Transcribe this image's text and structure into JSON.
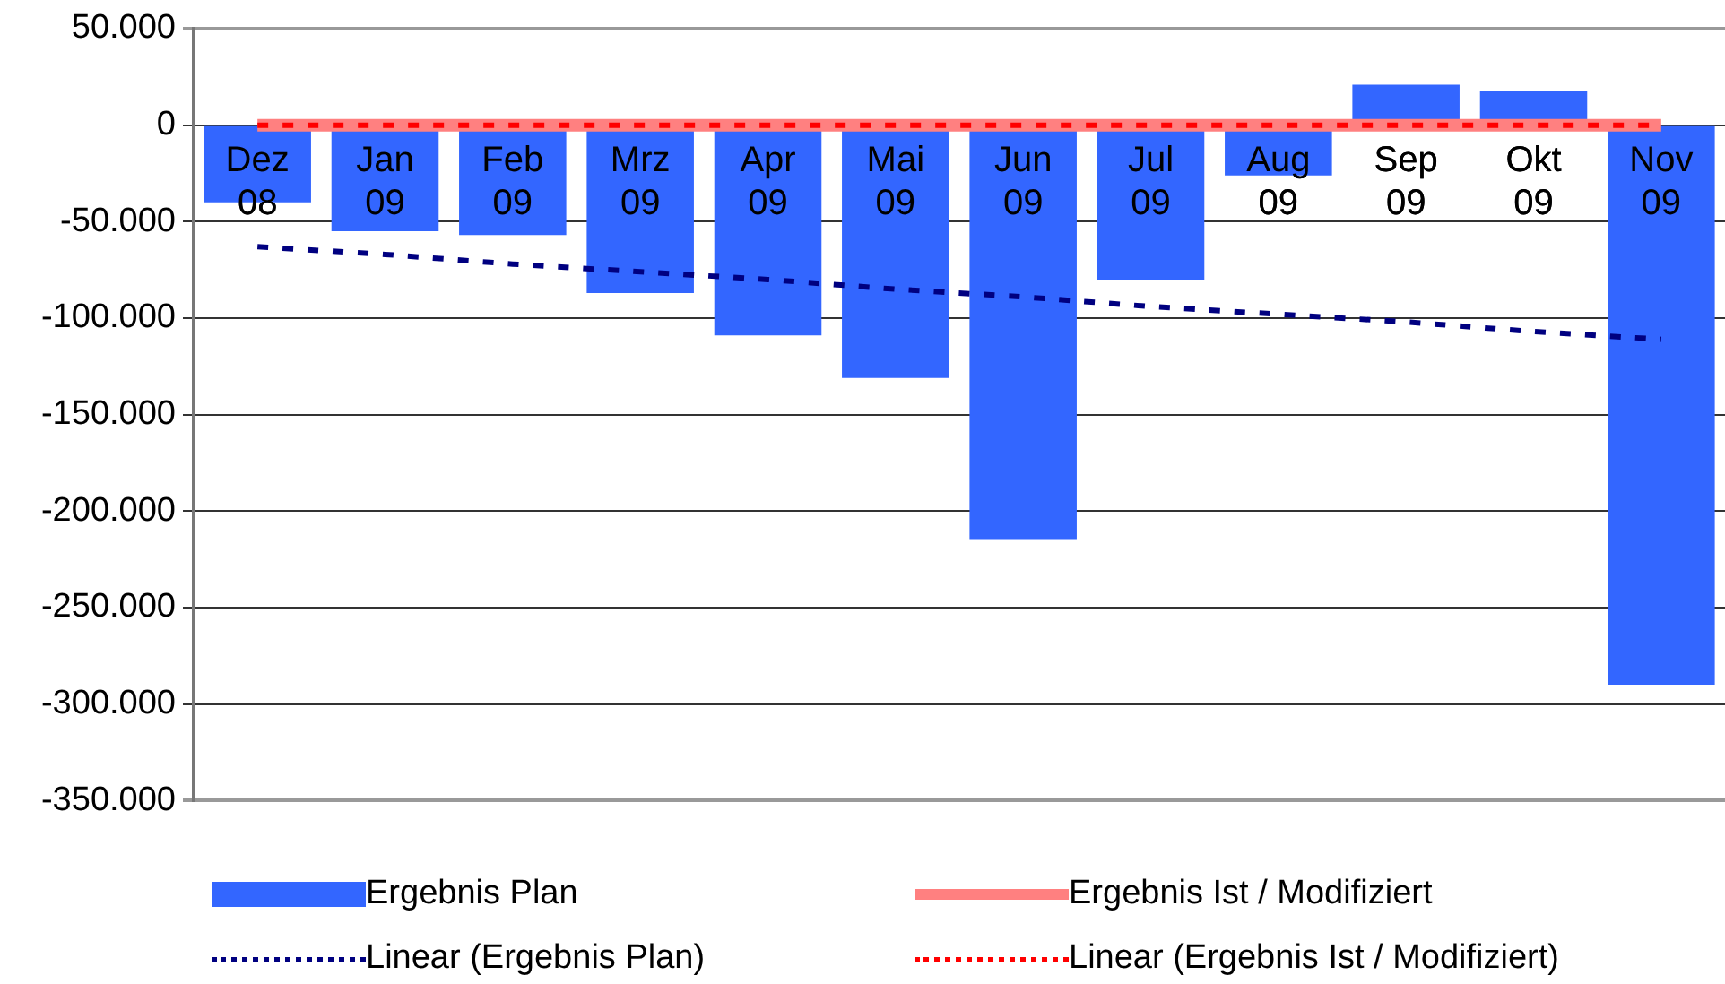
{
  "chart_data": {
    "type": "bar",
    "categories": [
      "Dez 08",
      "Jan 09",
      "Feb 09",
      "Mrz 09",
      "Apr 09",
      "Mai 09",
      "Jun 09",
      "Jul 09",
      "Aug 09",
      "Sep 09",
      "Okt 09",
      "Nov 09"
    ],
    "series": [
      {
        "name": "Ergebnis Plan",
        "color": "#3366ff",
        "values": [
          -40000,
          -55000,
          -57000,
          -87000,
          -109000,
          -131000,
          -215000,
          -80000,
          -26000,
          21000,
          18000,
          -290000
        ]
      },
      {
        "name": "Ergebnis Ist / Modifiziert",
        "type": "line",
        "color": "#ff8080",
        "marker": "none",
        "line_style": "solid",
        "values": [
          0,
          0,
          0,
          0,
          0,
          0,
          0,
          0,
          0,
          0,
          0,
          0
        ]
      },
      {
        "name": "Linear (Ergebnis Plan)",
        "type": "line",
        "color": "#000080",
        "marker": "none",
        "line_style": "dotted",
        "values": [
          -63000,
          -67000,
          -72000,
          -76000,
          -80000,
          -85000,
          -89000,
          -94000,
          -98000,
          -102000,
          -107000,
          -111000
        ]
      },
      {
        "name": "Linear (Ergebnis Ist / Modifiziert)",
        "type": "line",
        "color": "#ff0000",
        "marker": "none",
        "line_style": "dotted",
        "values": [
          0,
          0,
          0,
          0,
          0,
          0,
          0,
          0,
          0,
          0,
          0,
          0
        ]
      }
    ],
    "ylim": [
      -350000,
      50000
    ],
    "yticks": [
      {
        "value": -350000,
        "label": "-350.000"
      },
      {
        "value": -300000,
        "label": "-300.000"
      },
      {
        "value": -250000,
        "label": "-250.000"
      },
      {
        "value": -200000,
        "label": "-200.000"
      },
      {
        "value": -150000,
        "label": "-150.000"
      },
      {
        "value": -100000,
        "label": "-100.000"
      },
      {
        "value": -50000,
        "label": "-50.000"
      },
      0,
      {
        "value": 50000,
        "label": "50.000"
      }
    ],
    "grid": "y",
    "legend": "bottom"
  }
}
